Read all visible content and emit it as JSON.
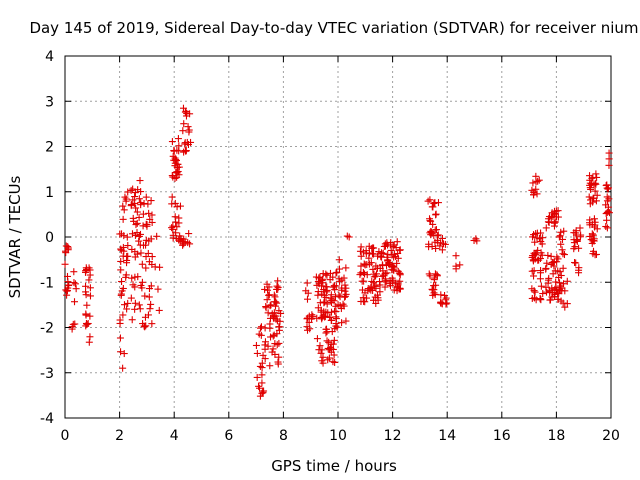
{
  "chart_data": {
    "type": "scatter",
    "title": "Day 145 of 2019, Sidereal Day-to-day VTEC variation (SDTVAR) for receiver nium",
    "xlabel": "GPS time / hours",
    "ylabel": "SDTVAR / TECUs",
    "xlim": [
      0,
      20
    ],
    "ylim": [
      -4,
      4
    ],
    "xticks": [
      "0",
      "2",
      "4",
      "6",
      "8",
      "10",
      "12",
      "14",
      "16",
      "18",
      "20"
    ],
    "yticks": [
      "4",
      "3",
      "2",
      "1",
      "0",
      "-1",
      "-2",
      "-3",
      "-4"
    ],
    "grid": true,
    "marker": "+",
    "color": "#e00000",
    "clusters": [
      {
        "x0": 0.0,
        "x1": 0.15,
        "ymin": -1.3,
        "ymax": 0.1,
        "n": 16
      },
      {
        "x0": 0.25,
        "x1": 0.45,
        "ymin": -2.5,
        "ymax": -0.7,
        "n": 9
      },
      {
        "x0": 0.75,
        "x1": 0.95,
        "ymin": -2.4,
        "ymax": -0.6,
        "n": 24
      },
      {
        "x0": 2.0,
        "x1": 2.3,
        "ymin": -3.0,
        "ymax": 1.1,
        "n": 40
      },
      {
        "x0": 2.4,
        "x1": 2.8,
        "ymin": -1.9,
        "ymax": 1.3,
        "n": 45
      },
      {
        "x0": 2.8,
        "x1": 3.2,
        "ymin": -2.0,
        "ymax": 0.9,
        "n": 40
      },
      {
        "x0": 3.3,
        "x1": 3.5,
        "ymin": -1.7,
        "ymax": 1.1,
        "n": 5
      },
      {
        "x0": 3.9,
        "x1": 4.2,
        "ymin": 1.2,
        "ymax": 2.2,
        "n": 28
      },
      {
        "x0": 3.9,
        "x1": 4.3,
        "ymin": -0.2,
        "ymax": 0.9,
        "n": 22
      },
      {
        "x0": 4.3,
        "x1": 4.6,
        "ymin": 1.8,
        "ymax": 3.05,
        "n": 20
      },
      {
        "x0": 4.3,
        "x1": 4.6,
        "ymin": -0.2,
        "ymax": 0.1,
        "n": 8
      },
      {
        "x0": 7.0,
        "x1": 7.3,
        "ymin": -3.6,
        "ymax": -1.9,
        "n": 20
      },
      {
        "x0": 7.3,
        "x1": 7.9,
        "ymin": -2.9,
        "ymax": -0.9,
        "n": 60
      },
      {
        "x0": 8.8,
        "x1": 9.1,
        "ymin": -2.2,
        "ymax": -1.0,
        "n": 14
      },
      {
        "x0": 9.2,
        "x1": 9.9,
        "ymin": -2.8,
        "ymax": -0.8,
        "n": 90
      },
      {
        "x0": 9.9,
        "x1": 10.3,
        "ymin": -2.0,
        "ymax": -0.5,
        "n": 35
      },
      {
        "x0": 10.3,
        "x1": 10.45,
        "ymin": 0.0,
        "ymax": 0.15,
        "n": 2
      },
      {
        "x0": 10.8,
        "x1": 11.6,
        "ymin": -1.5,
        "ymax": -0.2,
        "n": 70
      },
      {
        "x0": 11.6,
        "x1": 12.3,
        "ymin": -1.2,
        "ymax": -0.1,
        "n": 70
      },
      {
        "x0": 13.3,
        "x1": 13.7,
        "ymin": -0.3,
        "ymax": 0.85,
        "n": 30
      },
      {
        "x0": 13.3,
        "x1": 13.7,
        "ymin": -1.3,
        "ymax": -0.7,
        "n": 15
      },
      {
        "x0": 13.7,
        "x1": 14.0,
        "ymin": -1.5,
        "ymax": -1.2,
        "n": 10
      },
      {
        "x0": 13.7,
        "x1": 14.0,
        "ymin": -0.3,
        "ymax": 0.0,
        "n": 6
      },
      {
        "x0": 14.3,
        "x1": 14.5,
        "ymin": -0.9,
        "ymax": -0.4,
        "n": 4
      },
      {
        "x0": 14.95,
        "x1": 15.1,
        "ymin": -0.1,
        "ymax": 0.0,
        "n": 3
      },
      {
        "x0": 17.1,
        "x1": 17.4,
        "ymin": 0.9,
        "ymax": 1.4,
        "n": 12
      },
      {
        "x0": 17.1,
        "x1": 17.5,
        "ymin": -1.4,
        "ymax": 0.1,
        "n": 45
      },
      {
        "x0": 17.6,
        "x1": 18.1,
        "ymin": 0.2,
        "ymax": 0.6,
        "n": 20
      },
      {
        "x0": 17.6,
        "x1": 18.1,
        "ymin": -1.4,
        "ymax": -0.4,
        "n": 40
      },
      {
        "x0": 18.1,
        "x1": 18.4,
        "ymin": -1.6,
        "ymax": 0.2,
        "n": 25
      },
      {
        "x0": 18.6,
        "x1": 18.9,
        "ymin": -0.8,
        "ymax": 0.2,
        "n": 20
      },
      {
        "x0": 19.2,
        "x1": 19.5,
        "ymin": -0.4,
        "ymax": 1.4,
        "n": 45
      },
      {
        "x0": 19.8,
        "x1": 20.0,
        "ymin": 0.2,
        "ymax": 1.95,
        "n": 20
      }
    ]
  }
}
